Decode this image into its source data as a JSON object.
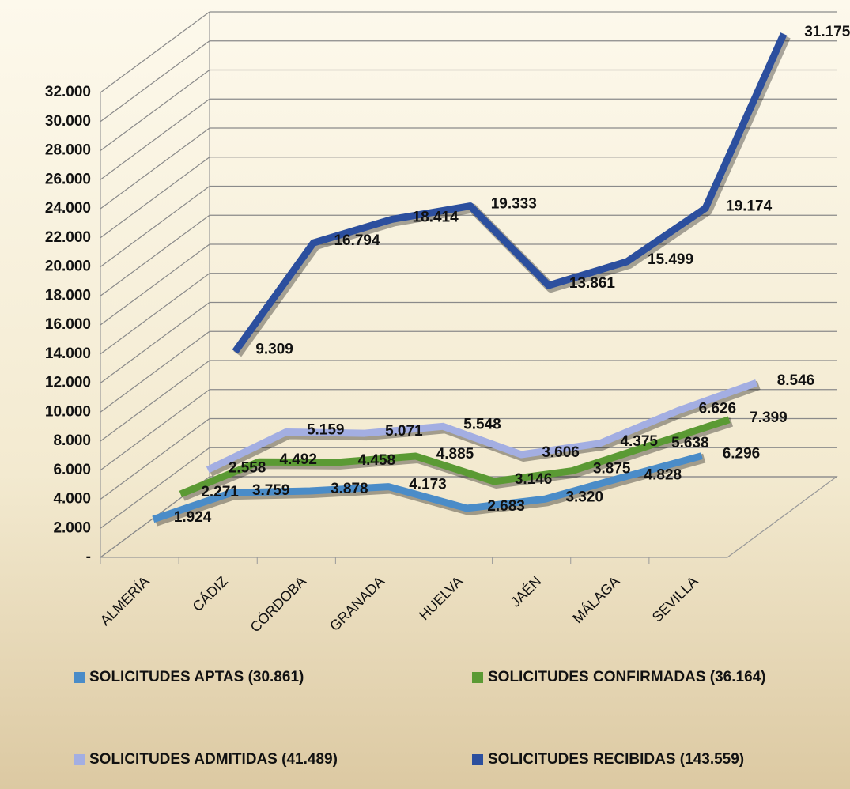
{
  "chart_data": {
    "type": "line3d",
    "categories": [
      "ALMERÍA",
      "CÁDIZ",
      "CÓRDOBA",
      "GRANADA",
      "HUELVA",
      "JAÉN",
      "MÁLAGA",
      "SEVILLA"
    ],
    "series": [
      {
        "name": "SOLICITUDES APTAS (30.861)",
        "color": "#4a8cc8",
        "values": [
          1924,
          3759,
          3878,
          4173,
          2683,
          3320,
          4828,
          6296
        ],
        "value_labels": [
          "1.924",
          "3.759",
          "3.878",
          "4.173",
          "2.683",
          "3.320",
          "4.828",
          "6.296"
        ]
      },
      {
        "name": "SOLICITUDES CONFIRMADAS (36.164)",
        "color": "#5b9a34",
        "values": [
          2271,
          4492,
          4458,
          4885,
          3146,
          3875,
          5638,
          7399
        ],
        "value_labels": [
          "2.271",
          "4.492",
          "4.458",
          "4.885",
          "3.146",
          "3.875",
          "5.638",
          "7.399"
        ]
      },
      {
        "name": "SOLICITUDES ADMITIDAS (41.489)",
        "color": "#a3aee2",
        "values": [
          2558,
          5159,
          5071,
          5548,
          3606,
          4375,
          6626,
          8546
        ],
        "value_labels": [
          "2.558",
          "5.159",
          "5.071",
          "5.548",
          "3.606",
          "4.375",
          "6.626",
          "8.546"
        ]
      },
      {
        "name": "SOLICITUDES RECIBIDAS (143.559)",
        "color": "#2c4f9e",
        "values": [
          9309,
          16794,
          18414,
          19333,
          13861,
          15499,
          19174,
          31175
        ],
        "value_labels": [
          "9.309",
          "16.794",
          "18.414",
          "19.333",
          "13.861",
          "15.499",
          "19.174",
          "31.175"
        ]
      }
    ],
    "ylim": [
      0,
      32000
    ],
    "yticks": [
      {
        "value": 0,
        "label": "-"
      },
      {
        "value": 2000,
        "label": "2.000"
      },
      {
        "value": 4000,
        "label": "4.000"
      },
      {
        "value": 6000,
        "label": "6.000"
      },
      {
        "value": 8000,
        "label": "8.000"
      },
      {
        "value": 10000,
        "label": "10.000"
      },
      {
        "value": 12000,
        "label": "12.000"
      },
      {
        "value": 14000,
        "label": "14.000"
      },
      {
        "value": 16000,
        "label": "16.000"
      },
      {
        "value": 18000,
        "label": "18.000"
      },
      {
        "value": 20000,
        "label": "20.000"
      },
      {
        "value": 22000,
        "label": "22.000"
      },
      {
        "value": 24000,
        "label": "24.000"
      },
      {
        "value": 26000,
        "label": "26.000"
      },
      {
        "value": 28000,
        "label": "28.000"
      },
      {
        "value": 30000,
        "label": "30.000"
      },
      {
        "value": 32000,
        "label": "32.000"
      }
    ],
    "grid": true,
    "legend": "bottom"
  }
}
